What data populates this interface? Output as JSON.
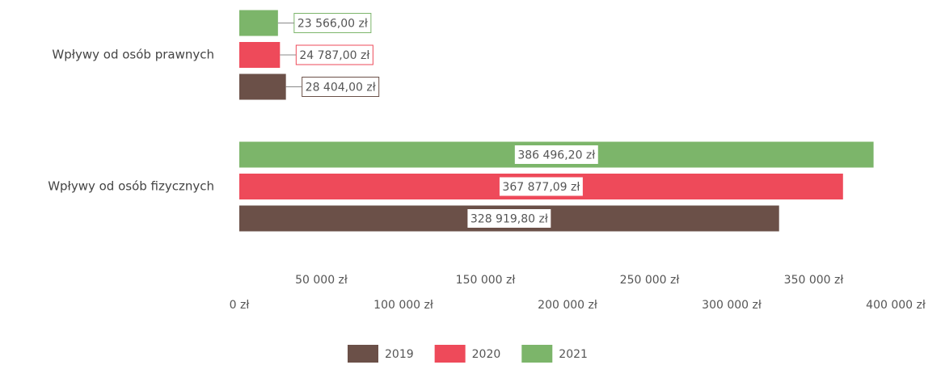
{
  "chart_data": {
    "type": "bar",
    "orientation": "horizontal",
    "categories": [
      "Wpływy od osób prawnych",
      "Wpływy od osób fizycznych"
    ],
    "series": [
      {
        "name": "2019",
        "color": "#6b5048",
        "values": [
          28404.0,
          328919.8
        ],
        "value_labels": [
          "28 404,00 zł",
          "328 919,80 zł"
        ]
      },
      {
        "name": "2020",
        "color": "#ee4a5a",
        "values": [
          24787.0,
          367877.09
        ],
        "value_labels": [
          "24 787,00 zł",
          "367 877,09 zł"
        ]
      },
      {
        "name": "2021",
        "color": "#7cb56a",
        "values": [
          23566.0,
          386496.2
        ],
        "value_labels": [
          "23 566,00 zł",
          "386 496,20 zł"
        ]
      }
    ],
    "xlim": [
      0,
      400000
    ],
    "xticks": [
      {
        "value": 0,
        "label": "0 zł"
      },
      {
        "value": 50000,
        "label": "50 000 zł"
      },
      {
        "value": 100000,
        "label": "100 000 zł"
      },
      {
        "value": 150000,
        "label": "150 000 zł"
      },
      {
        "value": 200000,
        "label": "200 000 zł"
      },
      {
        "value": 250000,
        "label": "250 000 zł"
      },
      {
        "value": 300000,
        "label": "300 000 zł"
      },
      {
        "value": 350000,
        "label": "350 000 zł"
      },
      {
        "value": 400000,
        "label": "400 000 zł"
      }
    ],
    "grid": false,
    "legend": "bottom"
  }
}
